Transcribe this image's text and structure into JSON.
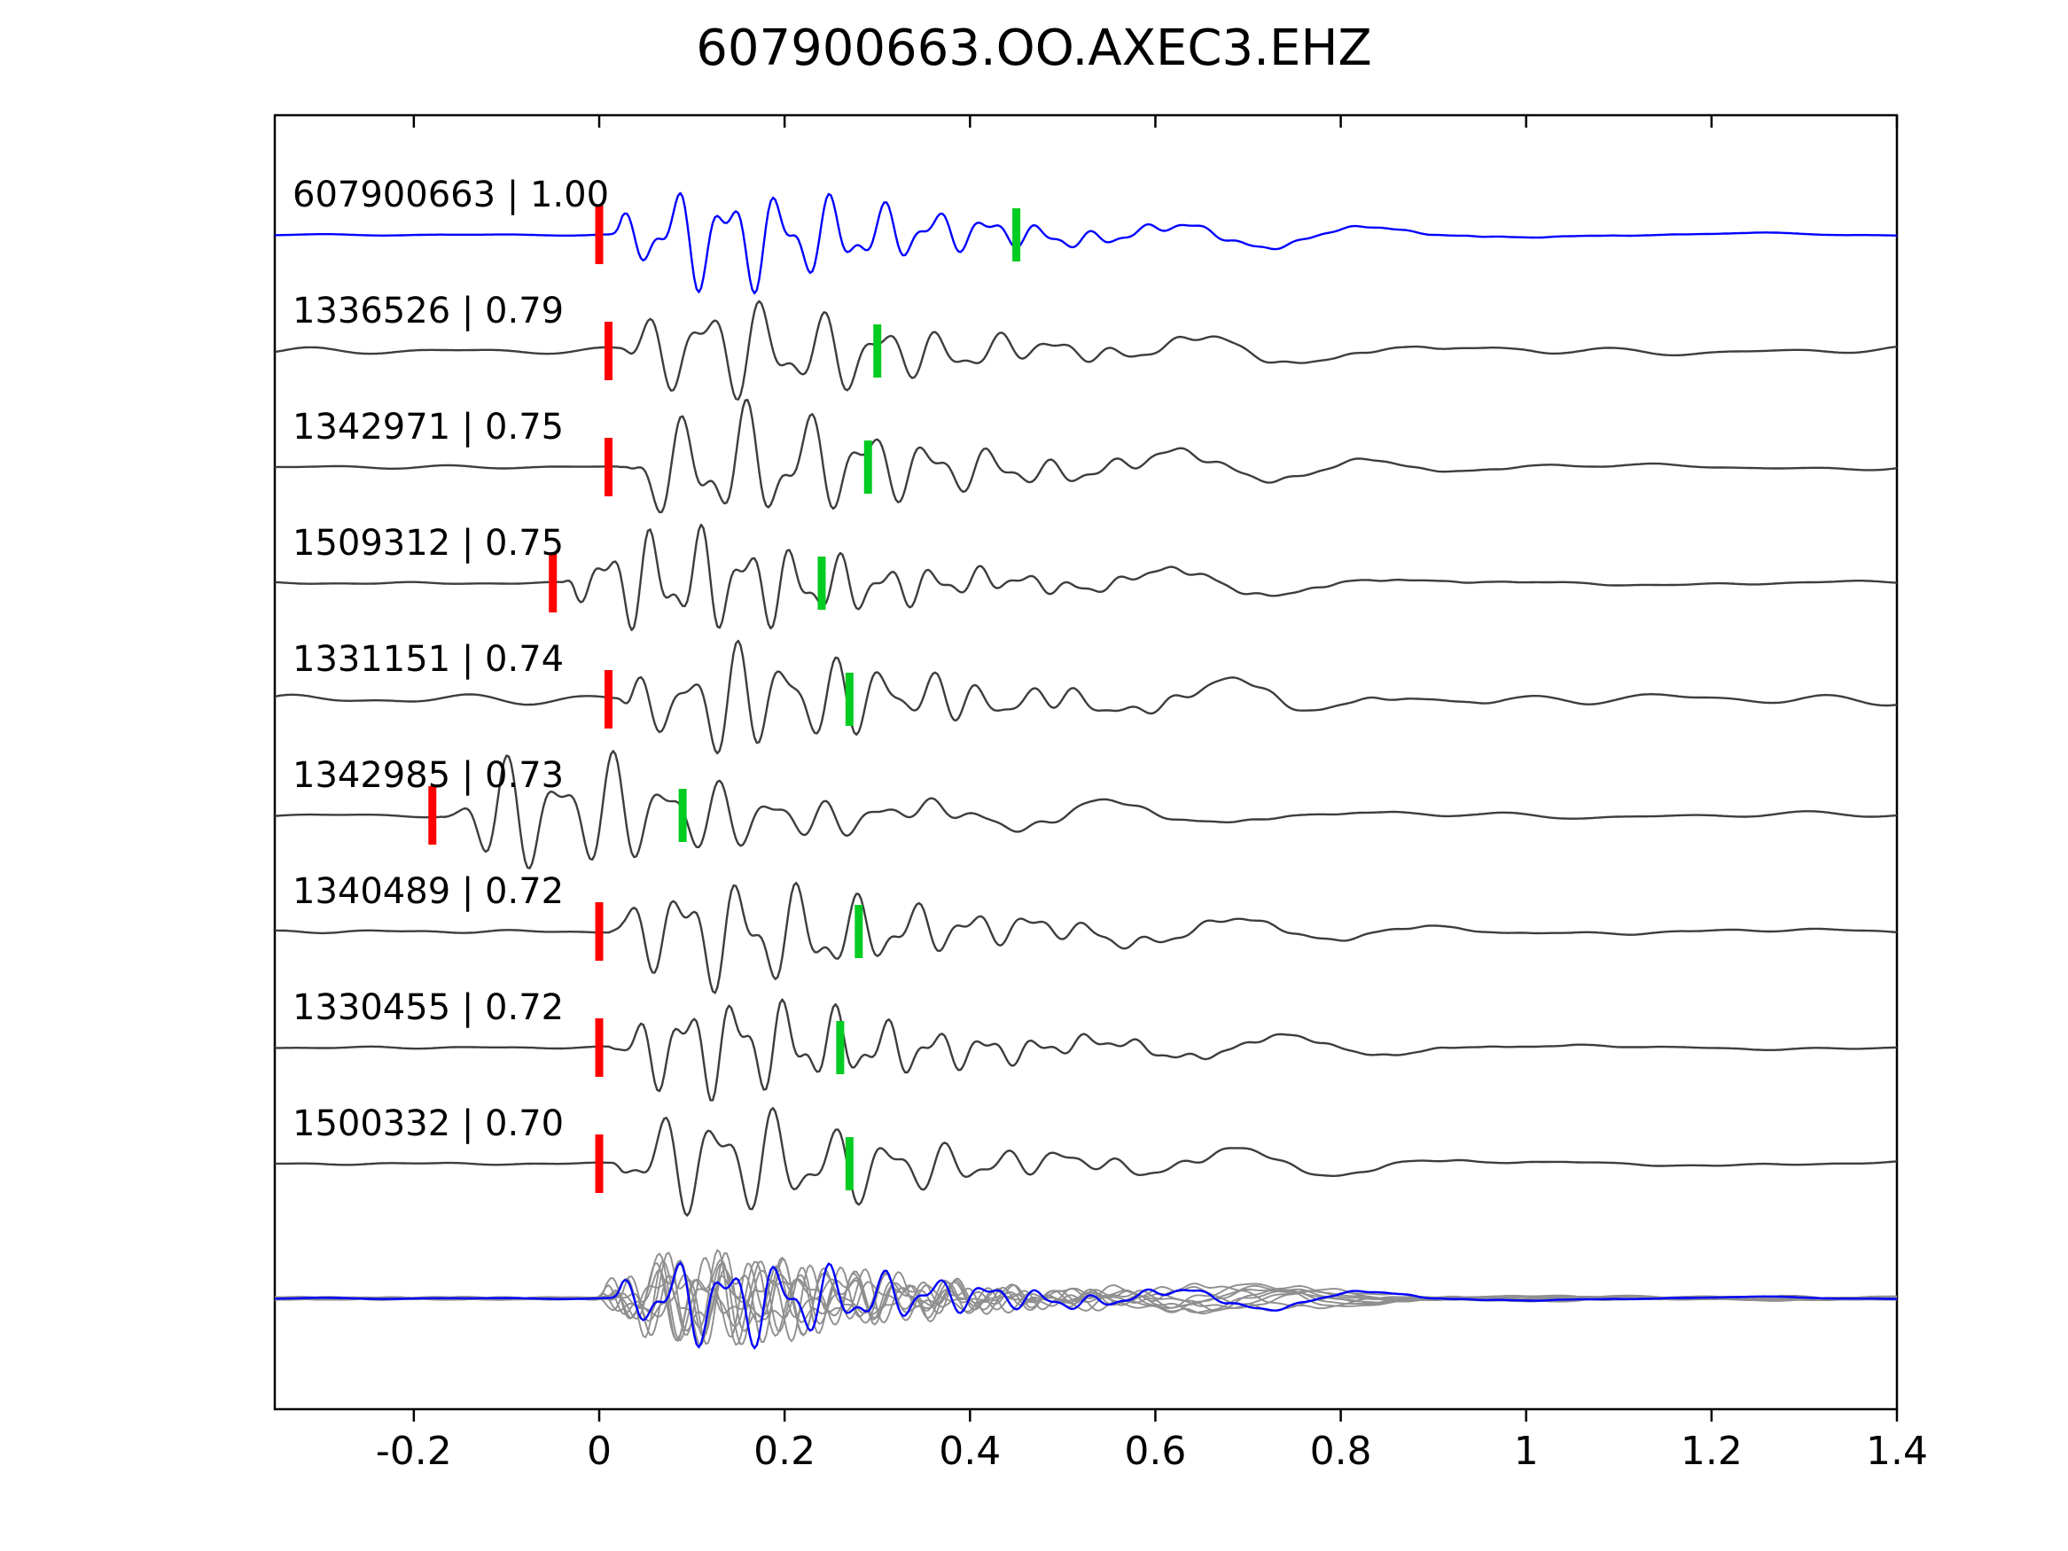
{
  "title": "607900663.OO.AXEC3.EHZ",
  "colors": {
    "template_trace": "#0000ff",
    "match_trace": "#3d3d3d",
    "stack_trace": "#8f8f8f",
    "pick_red": "#ff0000",
    "pick_green": "#00cc22",
    "axis": "#000000"
  },
  "axis": {
    "x_tick_labels": [
      "-0.2",
      "0",
      "0.2",
      "0.4",
      "0.6",
      "0.8",
      "1",
      "1.2",
      "1.4"
    ]
  },
  "chart_data": {
    "type": "line",
    "title": "607900663.OO.AXEC3.EHZ",
    "xlabel": "",
    "ylabel": "",
    "xlim": [
      -0.35,
      1.4
    ],
    "x_ticks": [
      -0.2,
      0,
      0.2,
      0.4,
      0.6,
      0.8,
      1,
      1.2,
      1.4
    ],
    "grid": false,
    "legend": "none",
    "description": "Template-matching seismogram figure: top blue trace is the template event, gray traces are matched detections labelled 'id | correlation', red bars mark trace onset picks, green bars mark secondary picks, bottom row overlays all aligned detections (gray) with the template (blue).",
    "traces": [
      {
        "label": "607900663 | 1.00",
        "id": "607900663",
        "correlation": 1.0,
        "color": "blue",
        "red_pick": 0.0,
        "green_pick": 0.45,
        "noise": 0.02,
        "amp": 1.0
      },
      {
        "label": "1336526 | 0.79",
        "id": "1336526",
        "correlation": 0.79,
        "color": "gray",
        "red_pick": 0.01,
        "green_pick": 0.3,
        "noise": 0.1,
        "amp": 0.85
      },
      {
        "label": "1342971 | 0.75",
        "id": "1342971",
        "correlation": 0.75,
        "color": "gray",
        "red_pick": 0.01,
        "green_pick": 0.29,
        "noise": 0.04,
        "amp": 1.15
      },
      {
        "label": "1509312 | 0.75",
        "id": "1509312",
        "correlation": 0.75,
        "color": "gray",
        "red_pick": -0.05,
        "green_pick": 0.24,
        "noise": 0.03,
        "amp": 1.0
      },
      {
        "label": "1331151 | 0.74",
        "id": "1331151",
        "correlation": 0.74,
        "color": "gray",
        "red_pick": 0.01,
        "green_pick": 0.27,
        "noise": 0.14,
        "amp": 1.0
      },
      {
        "label": "1342985 | 0.73",
        "id": "1342985",
        "correlation": 0.73,
        "color": "gray",
        "red_pick": -0.18,
        "green_pick": 0.09,
        "noise": 0.06,
        "amp": 1.1
      },
      {
        "label": "1340489 | 0.72",
        "id": "1340489",
        "correlation": 0.72,
        "color": "gray",
        "red_pick": 0.0,
        "green_pick": 0.28,
        "noise": 0.04,
        "amp": 1.05
      },
      {
        "label": "1330455 | 0.72",
        "id": "1330455",
        "correlation": 0.72,
        "color": "gray",
        "red_pick": 0.0,
        "green_pick": 0.26,
        "noise": 0.03,
        "amp": 0.9
      },
      {
        "label": "1500332 | 0.70",
        "id": "1500332",
        "correlation": 0.7,
        "color": "gray",
        "red_pick": 0.0,
        "green_pick": 0.27,
        "noise": 0.03,
        "amp": 0.95
      }
    ],
    "stack_row": {
      "gray_trace_count": 9,
      "overlay_color": "blue",
      "aligned_at": 0
    }
  }
}
